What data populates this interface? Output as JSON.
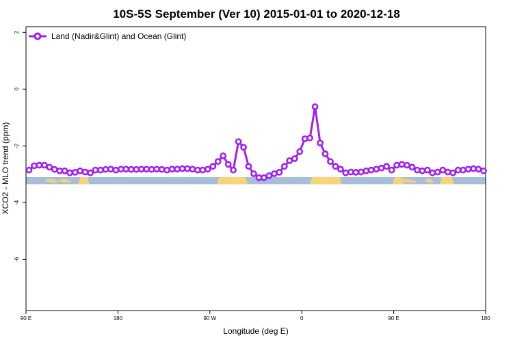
{
  "colors": {
    "series": "#a020f0",
    "ocean": "#a8bdd8",
    "land": "#f5d57a"
  },
  "chart_data": {
    "type": "line",
    "title": "10S-5S September (Ver 10)   2015-01-01 to 2020-12-18",
    "xlabel": "Longitude (deg E)",
    "ylabel": "XCO2 - MLO trend (ppm)",
    "xlim": [
      90,
      540
    ],
    "ylim": [
      -7.8,
      2.2
    ],
    "x_ticks": [
      {
        "value": 90,
        "label": "90 E"
      },
      {
        "value": 180,
        "label": "180"
      },
      {
        "value": 270,
        "label": "90 W"
      },
      {
        "value": 360,
        "label": "0"
      },
      {
        "value": 450,
        "label": "90 E"
      },
      {
        "value": 540,
        "label": "180"
      }
    ],
    "y_ticks": [
      {
        "value": 2,
        "label": "2"
      },
      {
        "value": 0,
        "label": "0"
      },
      {
        "value": -2,
        "label": "-2"
      },
      {
        "value": -4,
        "label": "-4"
      },
      {
        "value": -6,
        "label": "-6"
      }
    ],
    "grid": false,
    "legend": {
      "position": "top-left"
    },
    "surface_band": {
      "y_range": [
        -3.35,
        -3.1
      ],
      "land_segments": [
        [
          143,
          150
        ],
        [
          145,
          150
        ],
        [
          279,
          305
        ],
        [
          370,
          397
        ],
        [
          451,
          458
        ],
        [
          497,
          507
        ]
      ],
      "land_small": [
        [
          108,
          122
        ],
        [
          121,
          135
        ],
        [
          449,
          474
        ],
        [
          480,
          490
        ]
      ]
    },
    "series": [
      {
        "name": "Land (Nadir&Glint) and Ocean (Glint)",
        "x": [
          93,
          98,
          103,
          108,
          113,
          118,
          123,
          128,
          133,
          138,
          143,
          148,
          153,
          158,
          163,
          168,
          173,
          178,
          183,
          188,
          193,
          198,
          203,
          208,
          213,
          218,
          223,
          228,
          233,
          238,
          243,
          248,
          253,
          258,
          263,
          268,
          273,
          278,
          283,
          288,
          293,
          298,
          303,
          308,
          313,
          318,
          323,
          328,
          333,
          338,
          343,
          348,
          353,
          358,
          363,
          368,
          373,
          378,
          383,
          388,
          393,
          398,
          403,
          408,
          413,
          418,
          423,
          428,
          433,
          438,
          443,
          448,
          453,
          458,
          463,
          468,
          473,
          478,
          483,
          488,
          493,
          498,
          503,
          508,
          513,
          518,
          523,
          528,
          533,
          538
        ],
        "y": [
          -2.85,
          -2.7,
          -2.68,
          -2.68,
          -2.75,
          -2.83,
          -2.88,
          -2.88,
          -2.95,
          -2.93,
          -2.88,
          -2.92,
          -2.95,
          -2.85,
          -2.85,
          -2.83,
          -2.82,
          -2.85,
          -2.82,
          -2.82,
          -2.83,
          -2.83,
          -2.82,
          -2.82,
          -2.83,
          -2.82,
          -2.83,
          -2.85,
          -2.82,
          -2.82,
          -2.8,
          -2.8,
          -2.82,
          -2.85,
          -2.85,
          -2.82,
          -2.72,
          -2.55,
          -2.35,
          -2.65,
          -2.85,
          -1.85,
          -2.05,
          -2.72,
          -2.98,
          -3.12,
          -3.12,
          -3.05,
          -2.98,
          -2.93,
          -2.72,
          -2.52,
          -2.45,
          -2.2,
          -1.75,
          -1.72,
          -0.62,
          -1.9,
          -2.28,
          -2.55,
          -2.72,
          -2.82,
          -2.95,
          -2.92,
          -2.93,
          -2.92,
          -2.88,
          -2.85,
          -2.82,
          -2.78,
          -2.72,
          -2.85,
          -2.68,
          -2.65,
          -2.68,
          -2.75,
          -2.85,
          -2.88,
          -2.85,
          -2.95,
          -2.92,
          -2.85,
          -2.92,
          -2.95,
          -2.85,
          -2.85,
          -2.82,
          -2.8,
          -2.82,
          -2.88
        ]
      }
    ]
  }
}
